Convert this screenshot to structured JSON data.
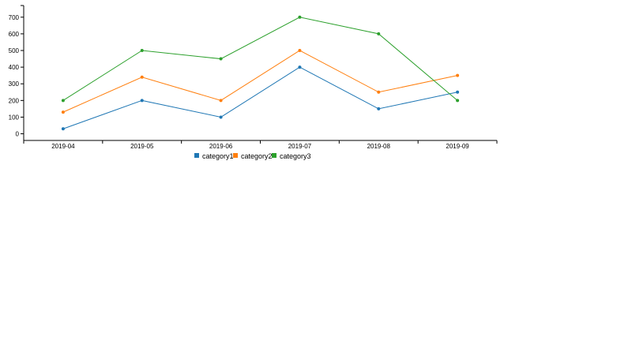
{
  "chart_data": {
    "type": "line",
    "categories": [
      "2019-04",
      "2019-05",
      "2019-06",
      "2019-07",
      "2019-08",
      "2019-09"
    ],
    "series": [
      {
        "name": "category1",
        "color": "#1f77b4",
        "values": [
          30,
          200,
          100,
          400,
          150,
          250
        ]
      },
      {
        "name": "category2",
        "color": "#ff7f0e",
        "values": [
          130,
          340,
          200,
          500,
          250,
          350
        ]
      },
      {
        "name": "category3",
        "color": "#2ca02c",
        "values": [
          200,
          500,
          450,
          700,
          600,
          200
        ]
      }
    ],
    "yticks": [
      0,
      100,
      200,
      300,
      400,
      500,
      600,
      700
    ],
    "ylim": [
      -40,
      770
    ],
    "legend_position": "bottom-center",
    "grid": false
  }
}
